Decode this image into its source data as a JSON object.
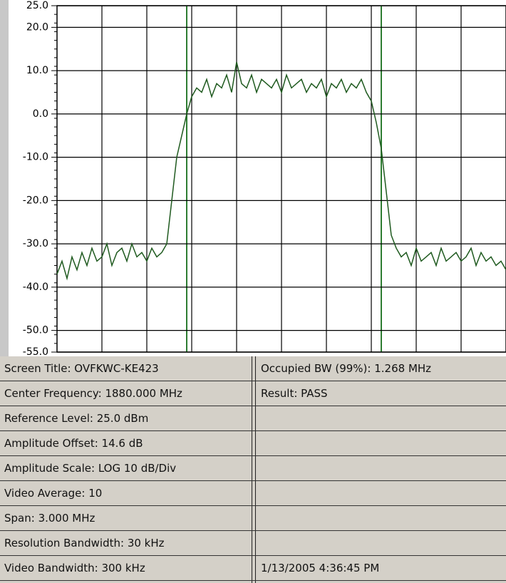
{
  "chart_data": {
    "type": "line",
    "ylim": [
      -55,
      25
    ],
    "yticks": [
      {
        "value": 25,
        "label": "25.0"
      },
      {
        "value": 20,
        "label": "20.0"
      },
      {
        "value": 10,
        "label": "10.0"
      },
      {
        "value": 0,
        "label": "0.0"
      },
      {
        "value": -10,
        "label": "-10.0"
      },
      {
        "value": -20,
        "label": "-20.0"
      },
      {
        "value": -30,
        "label": "-30.0"
      },
      {
        "value": -40,
        "label": "-40.0"
      },
      {
        "value": -50,
        "label": "-50.0"
      },
      {
        "value": -55,
        "label": "-55.0"
      }
    ],
    "grid": true,
    "color": "#1f5a1f",
    "values": [
      -37,
      -34,
      -38,
      -33,
      -36,
      -32,
      -35,
      -31,
      -34,
      -33,
      -30,
      -35,
      -32,
      -31,
      -34,
      -30,
      -33,
      -32,
      -34,
      -31,
      -33,
      -32,
      -30,
      -20,
      -10,
      -5,
      0,
      4,
      6,
      5,
      8,
      4,
      7,
      6,
      9,
      5,
      12,
      7,
      6,
      9,
      5,
      8,
      7,
      6,
      8,
      5,
      9,
      6,
      7,
      8,
      5,
      7,
      6,
      8,
      4,
      7,
      6,
      8,
      5,
      7,
      6,
      8,
      5,
      3,
      -2,
      -8,
      -18,
      -28,
      -31,
      -33,
      -32,
      -35,
      -31,
      -34,
      -33,
      -32,
      -35,
      -31,
      -34,
      -33,
      -32,
      -34,
      -33,
      -31,
      -35,
      -32,
      -34,
      -33,
      -35,
      -34,
      -36
    ]
  },
  "table": {
    "rows": [
      {
        "left": "Screen Title: OVFKWC-KE423",
        "right": "Occupied BW (99%): 1.268 MHz"
      },
      {
        "left": "Center Frequency: 1880.000 MHz",
        "right": "Result:  PASS"
      },
      {
        "left": "Reference Level: 25.0 dBm"
      },
      {
        "left": "Amplitude Offset: 14.6 dB"
      },
      {
        "left": "Amplitude Scale: LOG 10 dB/Div"
      },
      {
        "left": "Video Average: 10"
      },
      {
        "left": "Span: 3.000 MHz"
      },
      {
        "left": "Resolution Bandwidth: 30 kHz"
      },
      {
        "left": "Video Bandwidth: 300 kHz",
        "right": "1/13/2005 4:36:45 PM"
      }
    ]
  }
}
